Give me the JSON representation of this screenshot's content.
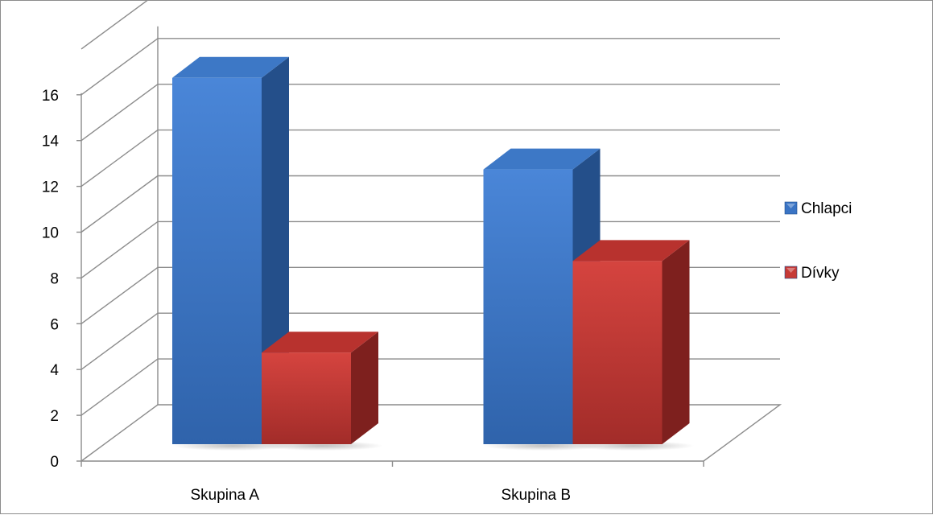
{
  "chart_data": {
    "type": "bar",
    "style": "3d-clustered-column",
    "title": "",
    "xlabel": "",
    "ylabel": "",
    "categories": [
      "Skupina A",
      "Skupina B"
    ],
    "series": [
      {
        "name": "Chlapci",
        "values": [
          16,
          12
        ],
        "color": "#3a74c4"
      },
      {
        "name": "Dívky",
        "values": [
          4,
          8
        ],
        "color": "#c63a36"
      }
    ],
    "ylim": [
      0,
      16
    ],
    "yticks": [
      "0",
      "2",
      "4",
      "6",
      "8",
      "10",
      "12",
      "14",
      "16"
    ],
    "grid": true,
    "legend_position": "right"
  }
}
